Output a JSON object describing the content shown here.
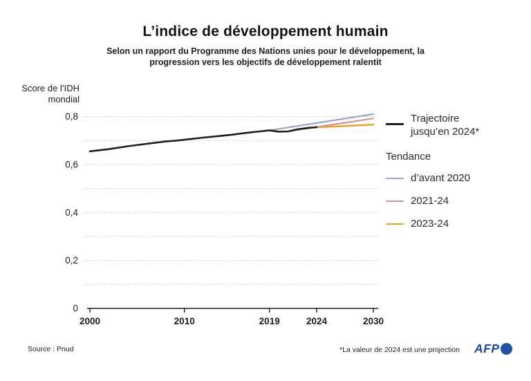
{
  "header": {
    "title": "L’indice de développement humain",
    "subtitle": "Selon un rapport du Programme des Nations unies pour le développement, la progression vers les objectifs de développement ralentit"
  },
  "legend": {
    "group_title": "Tendance"
  },
  "footer": {
    "source": "Source : Pnud",
    "note": "*La valeur de 2024 est une projection",
    "afp": "AFP"
  },
  "chart_data": {
    "type": "line",
    "title": "L’indice de développement humain",
    "ylabel": "Score de l’IDH mondial",
    "xlabel": "",
    "grid": "dotted horizontal every 0.1",
    "legend_position": "right",
    "colors": {
      "trajectory": "#1d1d1b",
      "trend_pre2020": "#9aa3cf",
      "trend_2021_24": "#cf929f",
      "trend_2023_24": "#f3a01e",
      "gridline": "#bdbdbd",
      "axis": "#1d1d1b",
      "afp_blue": "#1e4a9c"
    },
    "x": {
      "range": [
        2000,
        2030
      ],
      "ticks": [
        {
          "value": 2000,
          "label": "2000"
        },
        {
          "value": 2010,
          "label": "2010"
        },
        {
          "value": 2019,
          "label": "2019"
        },
        {
          "value": 2024,
          "label": "2024"
        },
        {
          "value": 2030,
          "label": "2030"
        }
      ]
    },
    "y": {
      "range": [
        0,
        0.8
      ],
      "gridline_step": 0.1,
      "ticks": [
        {
          "value": 0,
          "label": "0"
        },
        {
          "value": 0.2,
          "label": "0,2"
        },
        {
          "value": 0.4,
          "label": "0,4"
        },
        {
          "value": 0.6,
          "label": "0,6"
        },
        {
          "value": 0.8,
          "label": "0,8"
        }
      ]
    },
    "series": [
      {
        "name": "Trajectoire jusqu’en 2024*",
        "color": "#1d1d1b",
        "width": 2.6,
        "points": [
          [
            2000,
            0.655
          ],
          [
            2002,
            0.664
          ],
          [
            2004,
            0.676
          ],
          [
            2006,
            0.686
          ],
          [
            2008,
            0.696
          ],
          [
            2009,
            0.699
          ],
          [
            2010,
            0.703
          ],
          [
            2012,
            0.712
          ],
          [
            2014,
            0.72
          ],
          [
            2015,
            0.724
          ],
          [
            2016,
            0.729
          ],
          [
            2017,
            0.734
          ],
          [
            2018,
            0.738
          ],
          [
            2019,
            0.742
          ],
          [
            2020,
            0.737
          ],
          [
            2021,
            0.738
          ],
          [
            2022,
            0.747
          ],
          [
            2023,
            0.752
          ],
          [
            2024,
            0.756
          ]
        ]
      },
      {
        "name": "d’avant 2020",
        "color": "#9aa3cf",
        "width": 2.2,
        "points": [
          [
            2019,
            0.742
          ],
          [
            2030,
            0.81
          ]
        ]
      },
      {
        "name": "2021-24",
        "color": "#cf929f",
        "width": 2.2,
        "points": [
          [
            2021,
            0.738
          ],
          [
            2030,
            0.792
          ]
        ]
      },
      {
        "name": "2023-24",
        "color": "#f3a01e",
        "width": 2.5,
        "points": [
          [
            2023,
            0.753
          ],
          [
            2030,
            0.766
          ]
        ]
      }
    ]
  }
}
